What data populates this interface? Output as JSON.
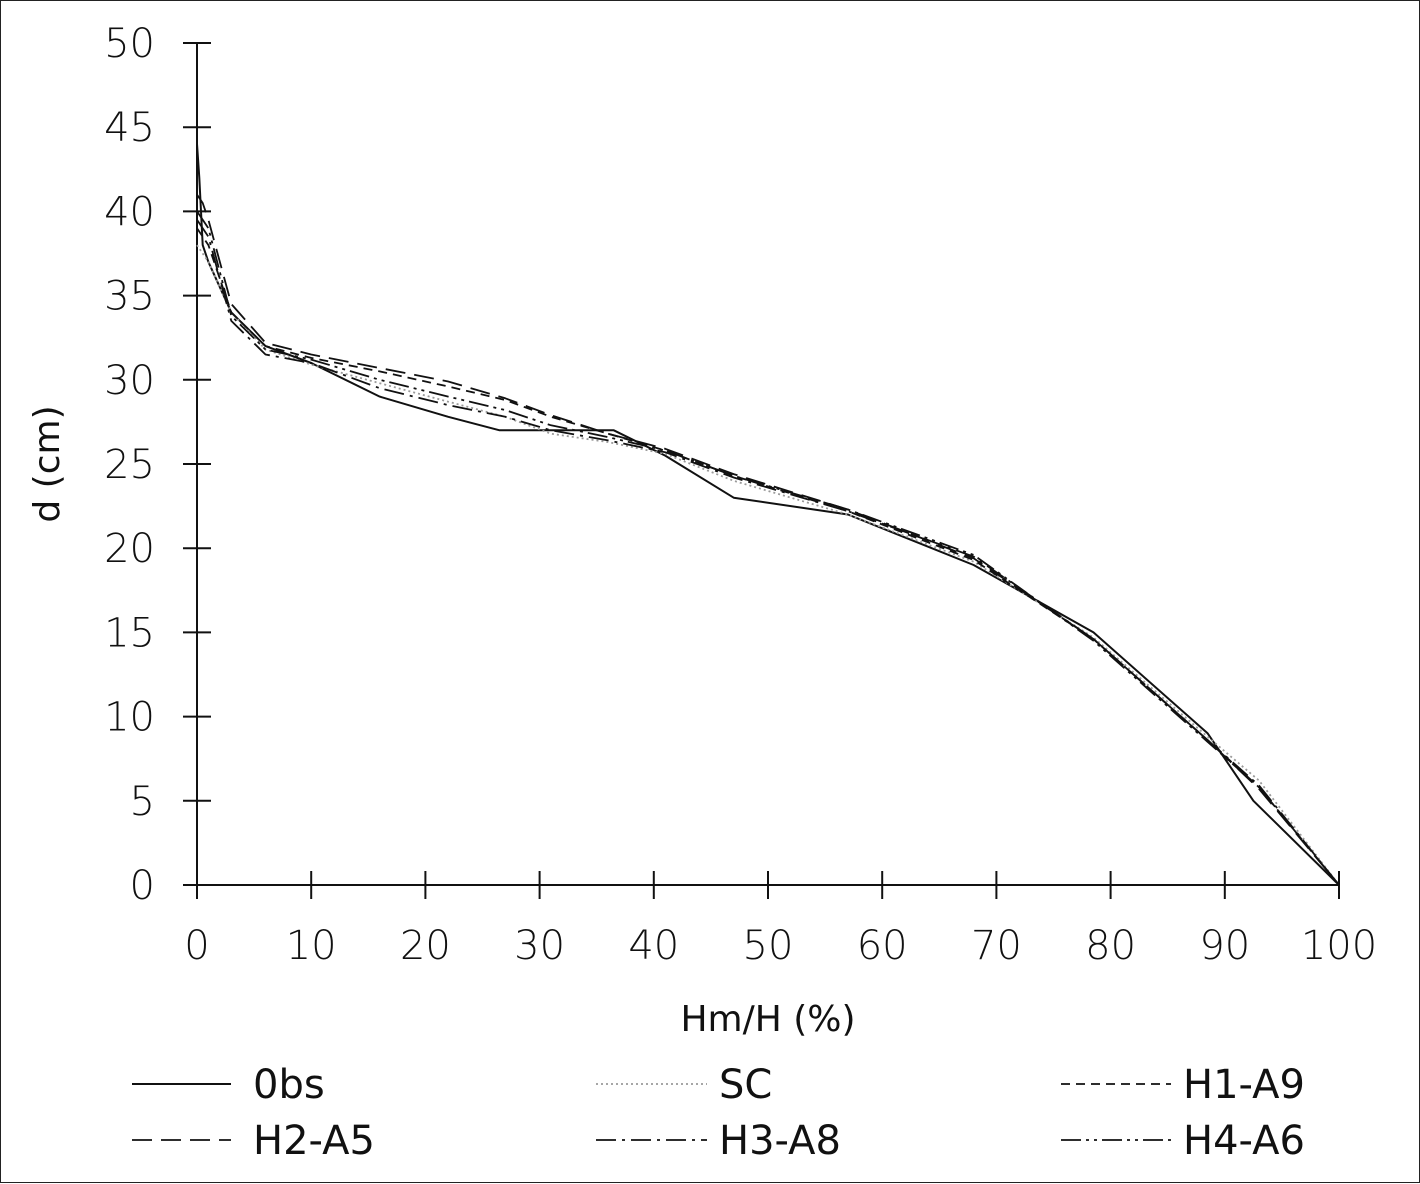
{
  "chart_data": {
    "type": "line",
    "title": "",
    "xlabel": "Hm/H (%)",
    "ylabel": "d (cm)",
    "xlim": [
      0,
      100
    ],
    "ylim": [
      0,
      50
    ],
    "xticks": [
      0,
      10,
      20,
      30,
      40,
      50,
      60,
      70,
      80,
      90,
      100
    ],
    "yticks": [
      0,
      5,
      10,
      15,
      20,
      25,
      30,
      35,
      40,
      45,
      50
    ],
    "grid": false,
    "legend": "bottom",
    "series": [
      {
        "name": "0bs",
        "dash": "solid",
        "color": "#111111",
        "x": [
          0,
          0.2,
          0.5,
          1,
          3,
          6,
          10,
          16,
          22,
          26.5,
          31,
          36.5,
          41,
          47,
          57,
          68,
          78.5,
          88.5,
          92.5,
          100
        ],
        "y": [
          44,
          42,
          38,
          37,
          34,
          32,
          31,
          29,
          27.8,
          27,
          27,
          27,
          25.5,
          23,
          22,
          19,
          15,
          9,
          5,
          0
        ]
      },
      {
        "name": "SC",
        "dash": "dotted",
        "color": "#9a9a9a",
        "x": [
          0,
          0.5,
          1,
          3,
          6,
          10,
          16,
          22,
          27,
          31,
          36,
          41,
          47,
          57,
          68,
          78.5,
          88.5,
          93,
          100
        ],
        "y": [
          38,
          37.5,
          37,
          34,
          31.8,
          30.9,
          29.8,
          28.7,
          27.8,
          26.8,
          26.3,
          25.6,
          24,
          22,
          19.2,
          14.7,
          8.8,
          6.2,
          0
        ]
      },
      {
        "name": "H1-A9",
        "dash": "short",
        "color": "#111111",
        "x": [
          0,
          0.5,
          1,
          3,
          6,
          10,
          16,
          22,
          27,
          31,
          36,
          41,
          47,
          57,
          68,
          78.5,
          88.5,
          93,
          100
        ],
        "y": [
          39,
          38.5,
          38,
          34,
          32,
          31.3,
          30.5,
          29.6,
          28.8,
          27.8,
          26.8,
          25.8,
          24.3,
          22.2,
          19.3,
          14.6,
          8.6,
          5.8,
          0
        ]
      },
      {
        "name": "H2-A5",
        "dash": "long",
        "color": "#111111",
        "x": [
          0,
          0.5,
          1,
          3,
          6,
          10,
          16,
          22,
          27,
          31,
          36,
          41,
          47,
          57,
          68,
          78.5,
          88.5,
          93,
          100
        ],
        "y": [
          41,
          40.5,
          39.5,
          34.5,
          32.2,
          31.5,
          30.7,
          29.9,
          28.9,
          27.9,
          26.8,
          25.9,
          24.4,
          22.3,
          19.4,
          14.6,
          8.6,
          5.7,
          0
        ]
      },
      {
        "name": "H3-A8",
        "dash": "dashdot",
        "color": "#111111",
        "x": [
          0,
          0.5,
          1,
          3,
          6,
          10,
          16,
          22,
          27,
          31,
          36,
          41,
          47,
          57,
          68,
          78.5,
          88.5,
          93,
          100
        ],
        "y": [
          39.5,
          39,
          38.5,
          33.5,
          31.5,
          31,
          29.5,
          28.5,
          27.8,
          27,
          26.4,
          25.7,
          24.2,
          22.2,
          19.5,
          14.6,
          8.6,
          5.9,
          0
        ]
      },
      {
        "name": "H4-A6",
        "dash": "dashdotdot",
        "color": "#111111",
        "x": [
          0,
          0.5,
          1,
          3,
          6,
          10,
          16,
          22,
          27,
          31,
          36,
          41,
          47,
          57,
          68,
          78.5,
          88.5,
          93,
          100
        ],
        "y": [
          40,
          39.5,
          39,
          33.8,
          31.8,
          31.2,
          30,
          29,
          28.2,
          27.3,
          26.6,
          25.8,
          24.3,
          22.3,
          19.6,
          14.5,
          8.5,
          5.8,
          0
        ]
      }
    ]
  }
}
